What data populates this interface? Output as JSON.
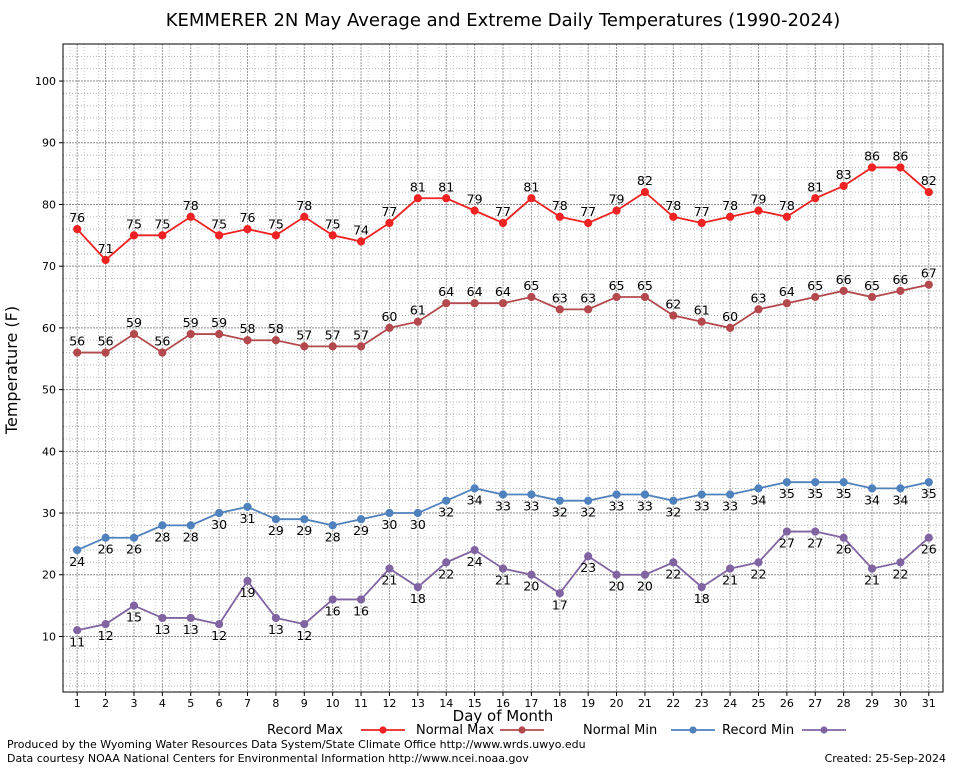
{
  "chart_data": {
    "type": "line",
    "title": "KEMMERER 2N May Average and Extreme Daily Temperatures (1990-2024)",
    "xlabel": "Day of Month",
    "ylabel": "Temperature (F)",
    "xlim": [
      0.5,
      31.5
    ],
    "ylim": [
      1,
      106
    ],
    "y_ticks": [
      10,
      20,
      30,
      40,
      50,
      60,
      70,
      80,
      90,
      100
    ],
    "x": [
      1,
      2,
      3,
      4,
      5,
      6,
      7,
      8,
      9,
      10,
      11,
      12,
      13,
      14,
      15,
      16,
      17,
      18,
      19,
      20,
      21,
      22,
      23,
      24,
      25,
      26,
      27,
      28,
      29,
      30,
      31
    ],
    "grid": true,
    "legend_position": "bottom",
    "series": [
      {
        "name": "Record Max",
        "color": "#ee2222",
        "label_position": "above",
        "values": [
          76,
          71,
          75,
          75,
          78,
          75,
          76,
          75,
          78,
          75,
          74,
          77,
          81,
          81,
          79,
          77,
          81,
          78,
          77,
          79,
          82,
          78,
          77,
          78,
          79,
          78,
          81,
          83,
          86,
          86,
          82
        ]
      },
      {
        "name": "Normal Max",
        "color": "#b3494d",
        "label_position": "above",
        "values": [
          56,
          56,
          59,
          56,
          59,
          59,
          58,
          58,
          57,
          57,
          57,
          60,
          61,
          64,
          64,
          64,
          65,
          63,
          63,
          65,
          65,
          62,
          61,
          60,
          63,
          64,
          65,
          66,
          65,
          66,
          67
        ]
      },
      {
        "name": "Normal Min",
        "color": "#4f81bd",
        "label_position": "below",
        "values": [
          24,
          26,
          26,
          28,
          28,
          30,
          31,
          29,
          29,
          28,
          29,
          30,
          30,
          32,
          34,
          33,
          33,
          32,
          32,
          33,
          33,
          32,
          33,
          33,
          34,
          35,
          35,
          35,
          34,
          34,
          35
        ]
      },
      {
        "name": "Record Min",
        "color": "#8064a2",
        "label_position": "below",
        "values": [
          11,
          12,
          15,
          13,
          13,
          12,
          19,
          13,
          12,
          16,
          16,
          21,
          18,
          22,
          24,
          21,
          20,
          17,
          23,
          20,
          20,
          22,
          18,
          21,
          22,
          27,
          27,
          26,
          21,
          22,
          26
        ]
      }
    ]
  },
  "footer": {
    "produced_by": "Produced by the Wyoming Water Resources Data System/State Climate Office http://www.wrds.uwyo.edu",
    "data_courtesy": "Data courtesy NOAA National Centers for Environmental Information http://www.ncei.noaa.gov",
    "created": "Created: 25-Sep-2024"
  }
}
